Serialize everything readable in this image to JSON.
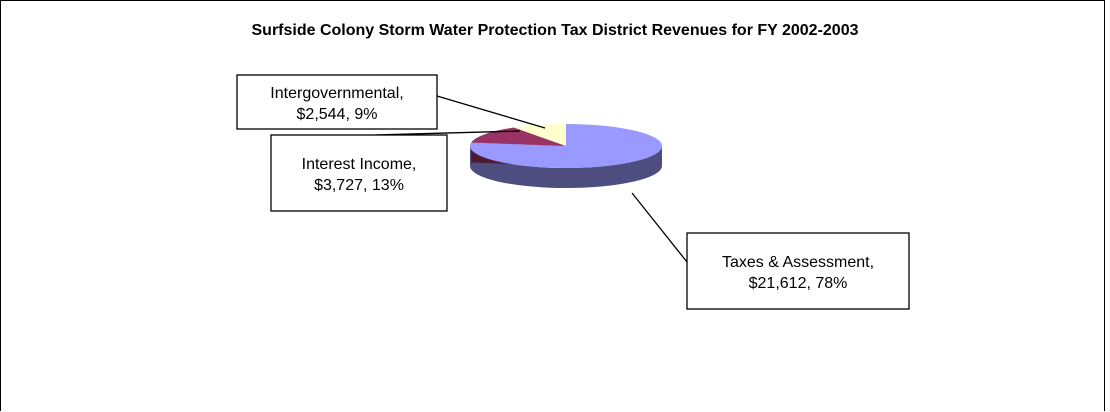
{
  "chart_data": {
    "type": "pie",
    "title": "Surfside Colony Storm Water Protection Tax District Revenues for FY 2002-2003",
    "slices": [
      {
        "category": "Taxes & Assessment",
        "value": 21612,
        "percent": 78,
        "label_line1": "Taxes & Assessment,",
        "label_line2": "$21,612, 78%",
        "color": "#9999FF",
        "side_color": "#4D4D80"
      },
      {
        "category": "Interest Income",
        "value": 3727,
        "percent": 13,
        "label_line1": "Interest Income,",
        "label_line2": "$3,727, 13%",
        "color": "#993366",
        "side_color": "#4D1A33"
      },
      {
        "category": "Intergovernmental",
        "value": 2544,
        "percent": 9,
        "label_line1": "Intergovernmental,",
        "label_line2": "$2,544, 9%",
        "color": "#FFFFCC",
        "side_color": "#808066"
      }
    ],
    "legend": "none",
    "style": "3d-pie"
  }
}
